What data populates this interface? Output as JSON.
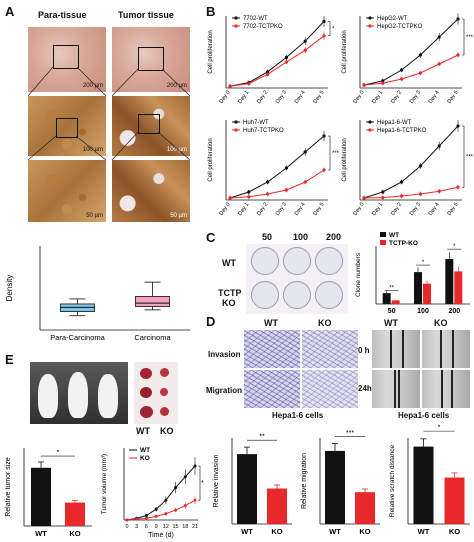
{
  "panels": {
    "A": "A",
    "B": "B",
    "C": "C",
    "D": "D",
    "E": "E"
  },
  "panel_a": {
    "col_left": "Para-tissue",
    "col_right": "Tumor tissue",
    "scale_bars": [
      "200 µm",
      "200 µm",
      "100 µm",
      "100 µm",
      "50 µm",
      "50 µm"
    ]
  },
  "panel_c": {
    "columns": [
      "50",
      "100",
      "200"
    ],
    "row1": "WT",
    "row2_line1": "TCTP",
    "row2_line2": "KO"
  },
  "panel_d": {
    "wt": "WT",
    "ko": "KO",
    "row1": "Invasion",
    "row2": "Migration",
    "caption_left": "Hepa1-6 cells",
    "wt2": "WT",
    "ko2": "KO",
    "time1": "0 h",
    "time2": "24h",
    "caption_right": "Hepa1-6 cells"
  },
  "panel_e": {
    "wt": "WT",
    "ko": "KO"
  },
  "chart_data": [
    {
      "id": "A-box",
      "type": "box",
      "ylabel": "Density",
      "categories": [
        "Para-Carcinoma",
        "Carcinoma"
      ],
      "ylim": [
        0,
        1.0
      ],
      "boxes": [
        {
          "min": 0.17,
          "q1": 0.22,
          "median": 0.27,
          "q3": 0.31,
          "max": 0.37,
          "color": "#7fc4e8"
        },
        {
          "min": 0.24,
          "q1": 0.28,
          "median": 0.32,
          "q3": 0.4,
          "max": 0.57,
          "color": "#f2a0c4"
        }
      ]
    },
    {
      "id": "B1",
      "type": "line",
      "ylabel": "Cell proliferation",
      "categories": [
        "Day 0",
        "Day 1",
        "Day 2",
        "Day 3",
        "Day 4",
        "Day 5"
      ],
      "legend": [
        "7702-WT",
        "7702-TCTPKO"
      ],
      "ylim": [
        0,
        2.0
      ],
      "series": [
        {
          "name": "7702-WT",
          "color": "#111111",
          "values": [
            0.05,
            0.15,
            0.45,
            0.85,
            1.3,
            1.85
          ]
        },
        {
          "name": "7702-TCTPKO",
          "color": "#e8282b",
          "values": [
            0.05,
            0.12,
            0.38,
            0.72,
            1.05,
            1.45
          ]
        }
      ],
      "annotation": "*"
    },
    {
      "id": "B2",
      "type": "line",
      "ylabel": "Cell proliferation",
      "categories": [
        "Day 0",
        "Day 1",
        "Day 2",
        "Day 3",
        "Day 4",
        "Day 5"
      ],
      "legend": [
        "HepG2-WT",
        "HepG2-TCTPKO"
      ],
      "ylim": [
        0,
        1.2
      ],
      "series": [
        {
          "name": "HepG2-WT",
          "color": "#111111",
          "values": [
            0.05,
            0.12,
            0.3,
            0.55,
            0.85,
            1.15
          ]
        },
        {
          "name": "HepG2-TCTPKO",
          "color": "#e8282b",
          "values": [
            0.05,
            0.08,
            0.15,
            0.25,
            0.4,
            0.55
          ]
        }
      ],
      "annotation": "***"
    },
    {
      "id": "B3",
      "type": "line",
      "ylabel": "Cell proliferation",
      "categories": [
        "Day 0",
        "Day 1",
        "Day 2",
        "Day 3",
        "Day 4",
        "Day 5"
      ],
      "legend": [
        "Huh7-WT",
        "Huh7-TCTPKO"
      ],
      "ylim": [
        0,
        2.0
      ],
      "series": [
        {
          "name": "Huh7-WT",
          "color": "#111111",
          "values": [
            0.05,
            0.2,
            0.45,
            0.8,
            1.2,
            1.6
          ]
        },
        {
          "name": "Huh7-TCTPKO",
          "color": "#e8282b",
          "values": [
            0.05,
            0.08,
            0.15,
            0.25,
            0.45,
            0.75
          ]
        }
      ],
      "annotation": "***"
    },
    {
      "id": "B4",
      "type": "line",
      "ylabel": "Cell proliferation",
      "categories": [
        "Day 0",
        "Day 1",
        "Day 2",
        "Day 3",
        "Day 4",
        "Day 5"
      ],
      "legend": [
        "Hepa1-6-WT",
        "Hepa1-6-TCTPKO"
      ],
      "ylim": [
        0,
        2.0
      ],
      "series": [
        {
          "name": "Hepa1-6-WT",
          "color": "#111111",
          "values": [
            0.05,
            0.2,
            0.45,
            0.85,
            1.35,
            1.85
          ]
        },
        {
          "name": "Hepa1-6-TCTPKO",
          "color": "#e8282b",
          "values": [
            0.05,
            0.06,
            0.1,
            0.15,
            0.22,
            0.32
          ]
        }
      ],
      "annotation": "***"
    },
    {
      "id": "C-bar",
      "type": "bar",
      "ylabel": "Clone numbers",
      "categories": [
        "50",
        "100",
        "200"
      ],
      "legend": [
        "WT",
        "TCTP-KO"
      ],
      "ylim": [
        0,
        80
      ],
      "series": [
        {
          "name": "WT",
          "color": "#111111",
          "values": [
            15,
            44,
            62
          ]
        },
        {
          "name": "TCTP-KO",
          "color": "#e8282b",
          "values": [
            5,
            28,
            45
          ]
        }
      ],
      "annotations": [
        "**",
        "*",
        "*"
      ]
    },
    {
      "id": "D1",
      "type": "bar",
      "ylabel": "Relative invasion",
      "categories": [
        "WT",
        "KO"
      ],
      "ylim": [
        0,
        0.8
      ],
      "values": [
        0.65,
        0.33
      ],
      "colors": [
        "#111111",
        "#e8282b"
      ],
      "annotation": "**"
    },
    {
      "id": "D2",
      "type": "bar",
      "ylabel": "Relative migration",
      "categories": [
        "WT",
        "KO"
      ],
      "ylim": [
        0,
        1.0
      ],
      "values": [
        0.85,
        0.37
      ],
      "colors": [
        "#111111",
        "#e8282b"
      ],
      "annotation": "***"
    },
    {
      "id": "D3",
      "type": "bar",
      "ylabel": "Relative scratch distance",
      "categories": [
        "WT",
        "KO"
      ],
      "ylim": [
        0,
        1.0
      ],
      "values": [
        0.9,
        0.54
      ],
      "colors": [
        "#111111",
        "#e8282b"
      ],
      "annotation": "*"
    },
    {
      "id": "E1",
      "type": "bar",
      "ylabel": "Relative tumor size",
      "categories": [
        "WT",
        "KO"
      ],
      "ylim": [
        0,
        1.5
      ],
      "values": [
        1.12,
        0.45
      ],
      "colors": [
        "#111111",
        "#e8282b"
      ],
      "annotation": "*"
    },
    {
      "id": "E2",
      "type": "line",
      "ylabel": "Tumor volume (mm³)",
      "xlabel": "Time (d)",
      "x": [
        0,
        3,
        6,
        9,
        12,
        15,
        18,
        21
      ],
      "ylim": [
        0,
        400
      ],
      "legend": [
        "WT",
        "KO"
      ],
      "series": [
        {
          "name": "WT",
          "color": "#111111",
          "values": [
            0,
            10,
            25,
            60,
            110,
            180,
            240,
            300
          ]
        },
        {
          "name": "KO",
          "color": "#e8282b",
          "values": [
            0,
            5,
            10,
            20,
            35,
            55,
            80,
            110
          ]
        }
      ],
      "annotation": "*"
    }
  ]
}
